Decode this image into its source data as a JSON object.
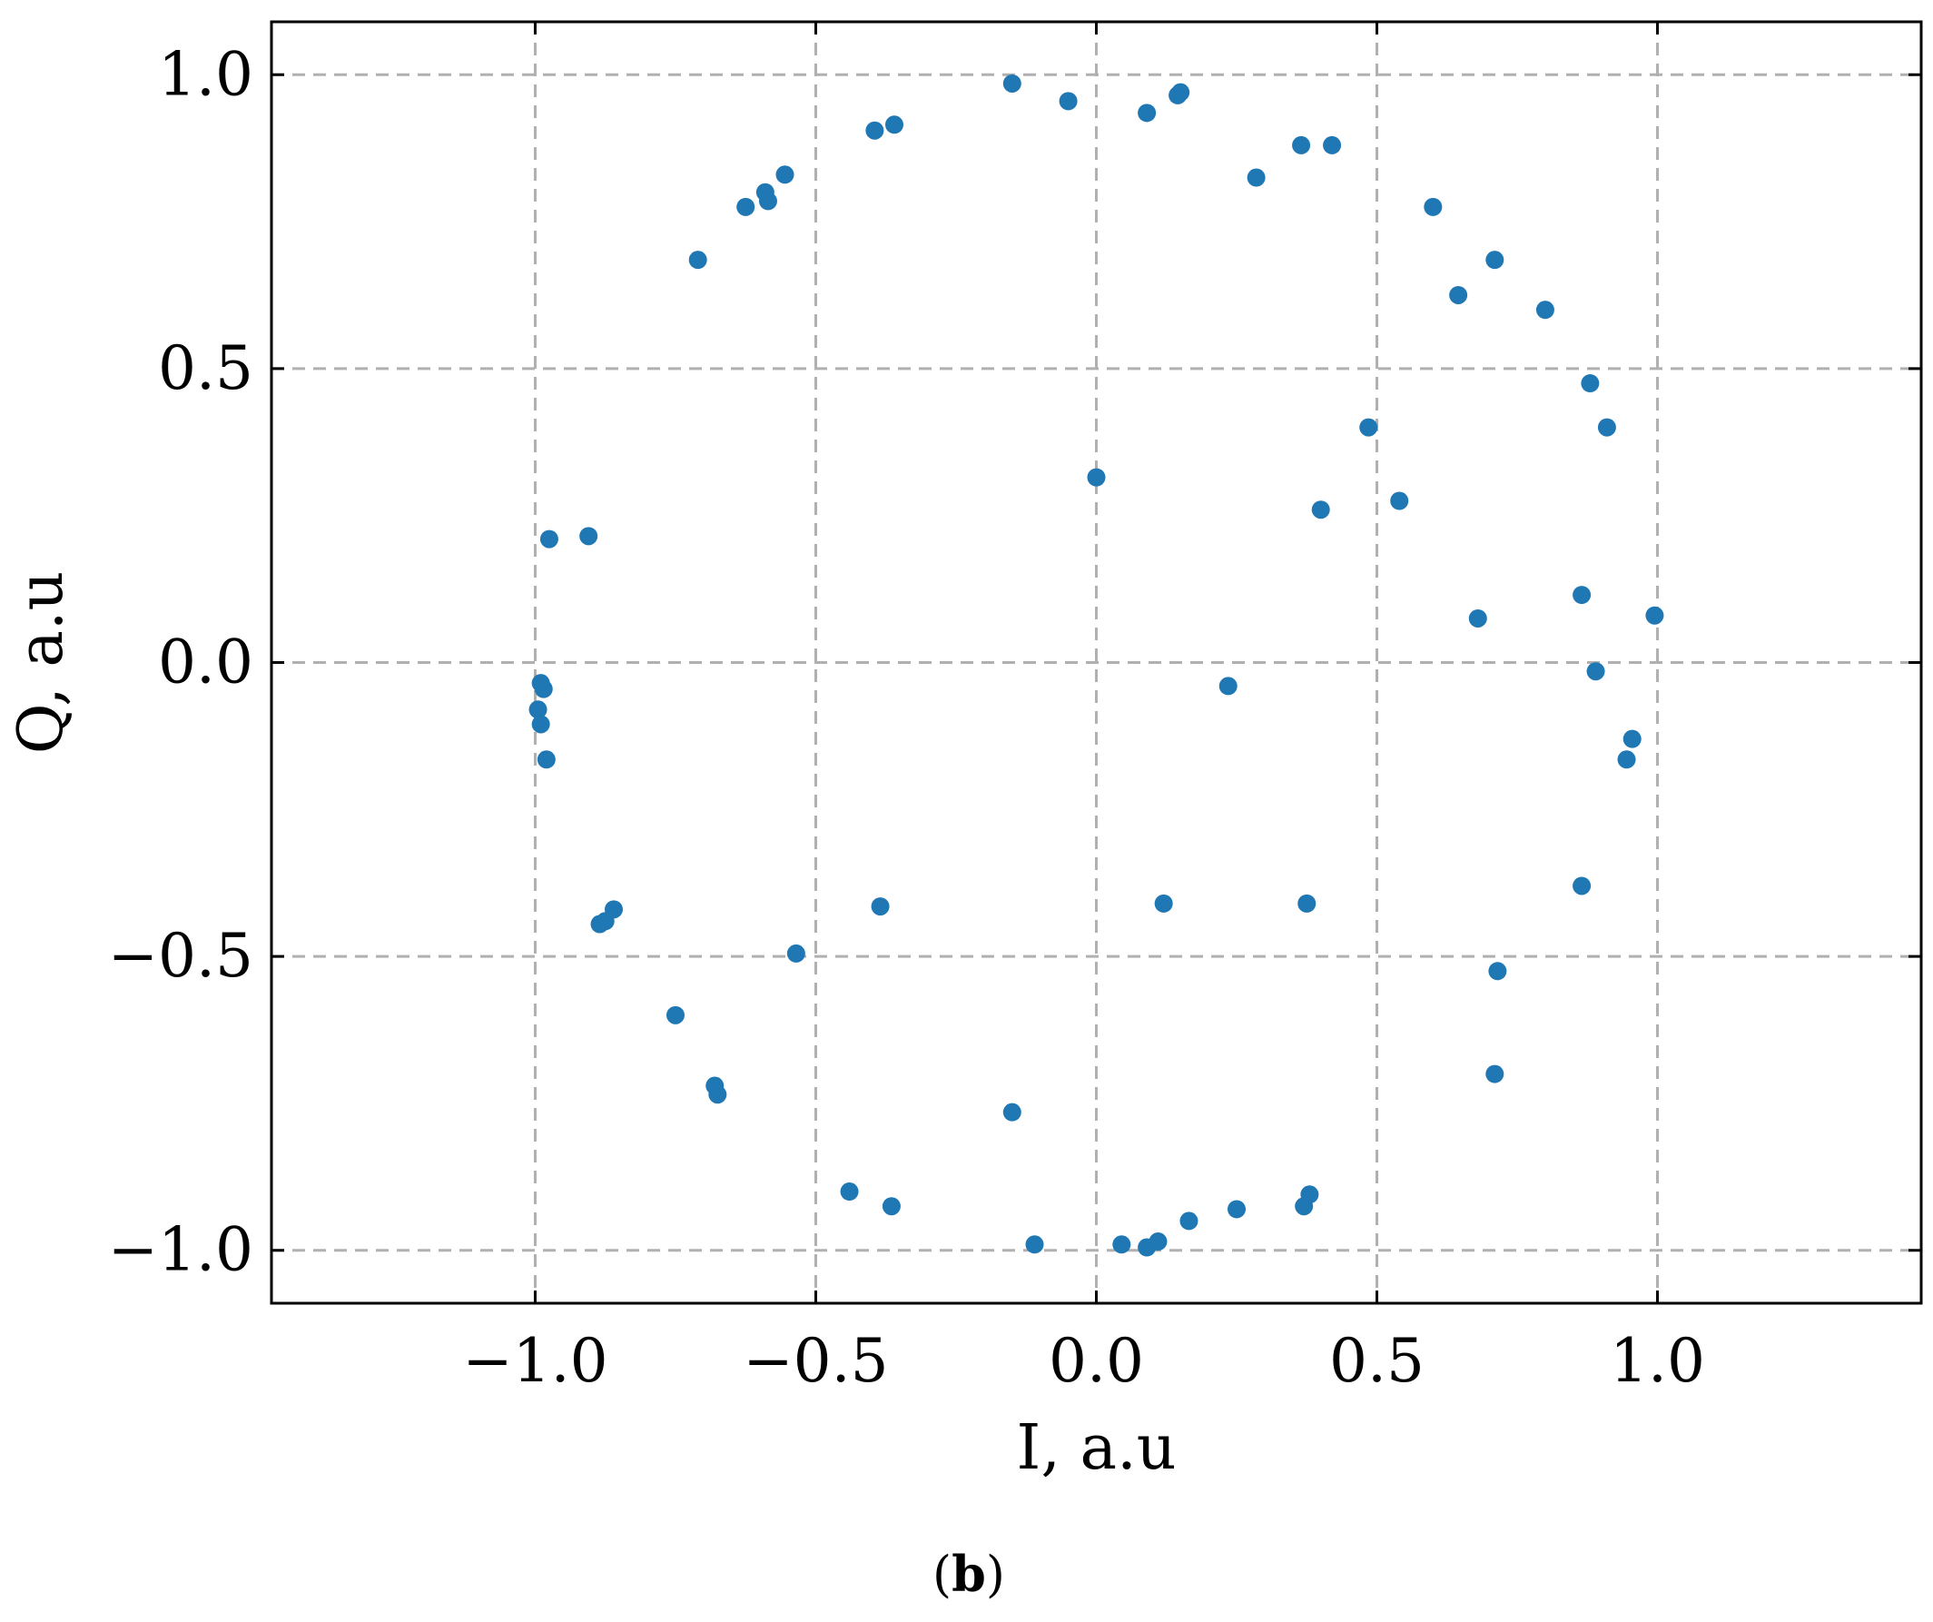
{
  "chart_data": {
    "type": "scatter",
    "title": "",
    "xlabel": "I, a.u",
    "ylabel": "Q, a.u",
    "xlim": [
      -1.47,
      1.47
    ],
    "ylim": [
      -1.09,
      1.09
    ],
    "xticks": [
      -1.0,
      -0.5,
      0.0,
      0.5,
      1.0
    ],
    "yticks": [
      -1.0,
      -0.5,
      0.0,
      0.5,
      1.0
    ],
    "xtick_labels": [
      "−1.0",
      "−0.5",
      "0.0",
      "0.5",
      "1.0"
    ],
    "ytick_labels": [
      "−1.0",
      "−0.5",
      "0.0",
      "0.5",
      "1.0"
    ],
    "grid": true,
    "legend": "none",
    "series": [
      {
        "color": "#1f77b4",
        "points": [
          [
            -0.15,
            0.985
          ],
          [
            -0.05,
            0.955
          ],
          [
            0.09,
            0.935
          ],
          [
            0.145,
            0.965
          ],
          [
            0.15,
            0.97
          ],
          [
            -0.36,
            0.915
          ],
          [
            -0.395,
            0.905
          ],
          [
            -0.555,
            0.83
          ],
          [
            -0.59,
            0.8
          ],
          [
            -0.585,
            0.785
          ],
          [
            -0.625,
            0.775
          ],
          [
            -0.71,
            0.685
          ],
          [
            0.285,
            0.825
          ],
          [
            0.365,
            0.88
          ],
          [
            0.42,
            0.88
          ],
          [
            0.6,
            0.775
          ],
          [
            0.71,
            0.685
          ],
          [
            0.645,
            0.625
          ],
          [
            0.8,
            0.6
          ],
          [
            0.88,
            0.475
          ],
          [
            0.91,
            0.4
          ],
          [
            0.485,
            0.4
          ],
          [
            0.0,
            0.315
          ],
          [
            0.54,
            0.275
          ],
          [
            0.4,
            0.26
          ],
          [
            -0.975,
            0.21
          ],
          [
            -0.905,
            0.215
          ],
          [
            0.865,
            0.115
          ],
          [
            0.995,
            0.08
          ],
          [
            0.68,
            0.075
          ],
          [
            0.89,
            -0.015
          ],
          [
            0.235,
            -0.04
          ],
          [
            -0.99,
            -0.035
          ],
          [
            -0.985,
            -0.045
          ],
          [
            -0.995,
            -0.08
          ],
          [
            -0.99,
            -0.105
          ],
          [
            -0.98,
            -0.165
          ],
          [
            0.955,
            -0.13
          ],
          [
            0.945,
            -0.165
          ],
          [
            -0.385,
            -0.415
          ],
          [
            0.12,
            -0.41
          ],
          [
            0.375,
            -0.41
          ],
          [
            0.865,
            -0.38
          ],
          [
            -0.86,
            -0.42
          ],
          [
            -0.875,
            -0.44
          ],
          [
            -0.885,
            -0.445
          ],
          [
            -0.535,
            -0.495
          ],
          [
            0.715,
            -0.525
          ],
          [
            -0.75,
            -0.6
          ],
          [
            0.71,
            -0.7
          ],
          [
            -0.68,
            -0.72
          ],
          [
            -0.675,
            -0.735
          ],
          [
            -0.15,
            -0.765
          ],
          [
            -0.44,
            -0.9
          ],
          [
            -0.365,
            -0.925
          ],
          [
            0.38,
            -0.905
          ],
          [
            0.37,
            -0.925
          ],
          [
            0.25,
            -0.93
          ],
          [
            0.165,
            -0.95
          ],
          [
            -0.11,
            -0.99
          ],
          [
            0.045,
            -0.99
          ],
          [
            0.09,
            -0.995
          ],
          [
            0.11,
            -0.985
          ]
        ]
      }
    ]
  },
  "caption": {
    "open": "(",
    "label": "b",
    "close": ")"
  }
}
